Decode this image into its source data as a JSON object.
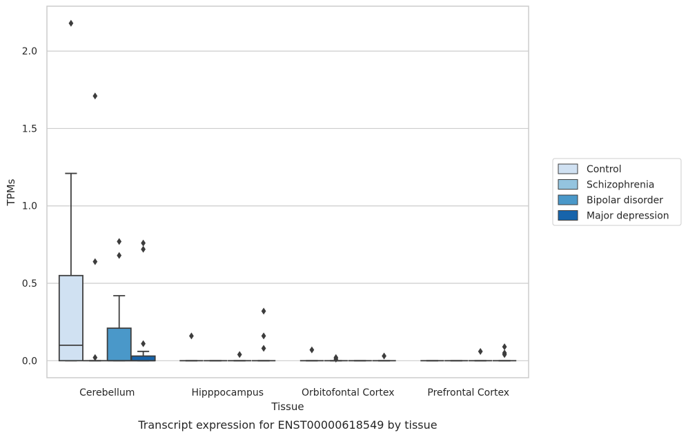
{
  "caption": "Transcript expression for ENST00000618549 by tissue",
  "chart_data": {
    "type": "boxplot",
    "xlabel": "Tissue",
    "ylabel": "TPMs",
    "ylim": [
      -0.11,
      2.29
    ],
    "yticks": [
      0.0,
      0.5,
      1.0,
      1.5,
      2.0
    ],
    "ytick_labels": [
      "0.0",
      "0.5",
      "1.0",
      "1.5",
      "2.0"
    ],
    "grid": true,
    "legend_placement": "right-center",
    "categories": [
      "Cerebellum",
      "Hipppocampus",
      "Orbitofontal Cortex",
      "Prefrontal Cortex"
    ],
    "series": [
      {
        "name": "Control",
        "color": "#d0e1f2",
        "boxes": [
          {
            "q1": 0.0,
            "median": 0.1,
            "q3": 0.55,
            "whislo": 0.0,
            "whishi": 1.21,
            "fliers": [
              2.18
            ]
          },
          {
            "q1": 0.0,
            "median": 0.0,
            "q3": 0.0,
            "whislo": 0.0,
            "whishi": 0.0,
            "fliers": [
              0.16
            ]
          },
          {
            "q1": 0.0,
            "median": 0.0,
            "q3": 0.0,
            "whislo": 0.0,
            "whishi": 0.0,
            "fliers": [
              0.07
            ]
          },
          {
            "q1": 0.0,
            "median": 0.0,
            "q3": 0.0,
            "whislo": 0.0,
            "whishi": 0.0,
            "fliers": []
          }
        ]
      },
      {
        "name": "Schizophrenia",
        "color": "#94c4df",
        "boxes": [
          {
            "q1": 0.0,
            "median": 0.0,
            "q3": 0.0,
            "whislo": 0.0,
            "whishi": 0.0,
            "fliers": [
              1.71,
              0.64,
              0.02
            ]
          },
          {
            "q1": 0.0,
            "median": 0.0,
            "q3": 0.0,
            "whislo": 0.0,
            "whishi": 0.0,
            "fliers": []
          },
          {
            "q1": 0.0,
            "median": 0.0,
            "q3": 0.0,
            "whislo": 0.0,
            "whishi": 0.0,
            "fliers": [
              0.02,
              0.01
            ]
          },
          {
            "q1": 0.0,
            "median": 0.0,
            "q3": 0.0,
            "whislo": 0.0,
            "whishi": 0.0,
            "fliers": []
          }
        ]
      },
      {
        "name": "Bipolar disorder",
        "color": "#4a98c9",
        "boxes": [
          {
            "q1": 0.0,
            "median": 0.0,
            "q3": 0.21,
            "whislo": 0.0,
            "whishi": 0.42,
            "fliers": [
              0.77,
              0.68
            ]
          },
          {
            "q1": 0.0,
            "median": 0.0,
            "q3": 0.0,
            "whislo": 0.0,
            "whishi": 0.0,
            "fliers": [
              0.04
            ]
          },
          {
            "q1": 0.0,
            "median": 0.0,
            "q3": 0.0,
            "whislo": 0.0,
            "whishi": 0.0,
            "fliers": []
          },
          {
            "q1": 0.0,
            "median": 0.0,
            "q3": 0.0,
            "whislo": 0.0,
            "whishi": 0.0,
            "fliers": [
              0.06
            ]
          }
        ]
      },
      {
        "name": "Major depression",
        "color": "#1764ab",
        "boxes": [
          {
            "q1": 0.0,
            "median": 0.0,
            "q3": 0.03,
            "whislo": 0.0,
            "whishi": 0.06,
            "fliers": [
              0.76,
              0.72,
              0.11
            ]
          },
          {
            "q1": 0.0,
            "median": 0.0,
            "q3": 0.0,
            "whislo": 0.0,
            "whishi": 0.0,
            "fliers": [
              0.32,
              0.16,
              0.08
            ]
          },
          {
            "q1": 0.0,
            "median": 0.0,
            "q3": 0.0,
            "whislo": 0.0,
            "whishi": 0.0,
            "fliers": [
              0.03
            ]
          },
          {
            "q1": 0.0,
            "median": 0.0,
            "q3": 0.0,
            "whislo": 0.0,
            "whishi": 0.0,
            "fliers": [
              0.09,
              0.05,
              0.04
            ]
          }
        ]
      }
    ]
  }
}
